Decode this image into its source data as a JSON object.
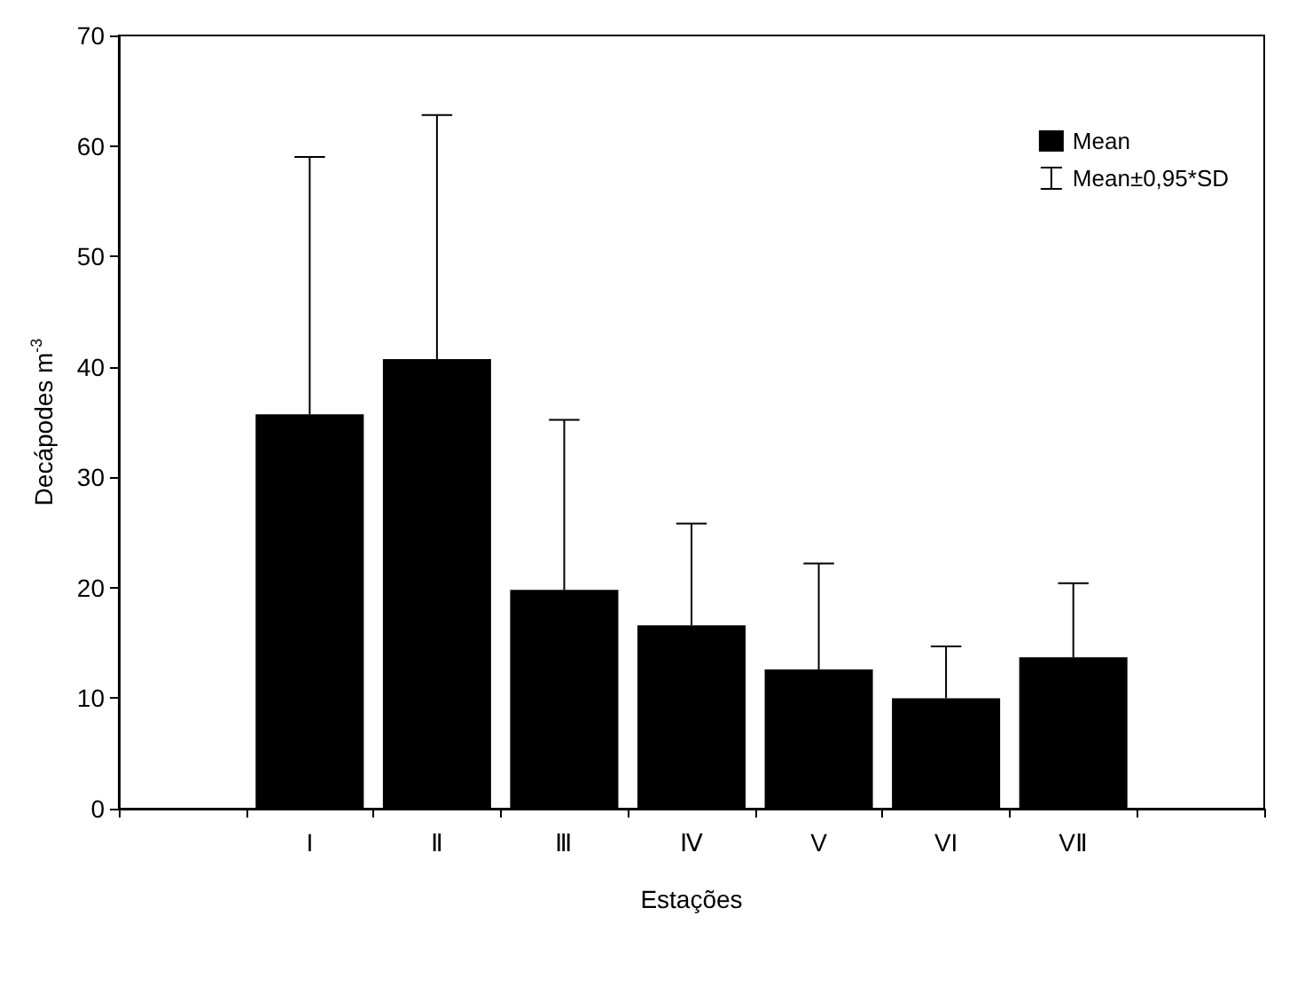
{
  "chart_data": {
    "type": "bar",
    "xlabel": "Estações",
    "ylabel": "Decápodes m$^{-3}$",
    "categories": [
      null,
      "I",
      "Ⅱ",
      "Ⅲ",
      "Ⅳ",
      "V",
      "VI",
      "VⅡ",
      null
    ],
    "series": [
      {
        "name": "Mean",
        "color": "#000000",
        "values": [
          null,
          35.7,
          40.7,
          19.8,
          16.6,
          12.6,
          10.0,
          13.7,
          null
        ],
        "errors": [
          null,
          23.3,
          22.1,
          15.4,
          9.2,
          9.6,
          4.7,
          6.7,
          null
        ]
      }
    ],
    "annotations": [
      "Mean±0,95*SD"
    ],
    "ylim": [
      0,
      70
    ],
    "yticks": [
      0,
      10,
      20,
      30,
      40,
      50,
      60,
      70
    ],
    "grid": false,
    "legend": "top right"
  }
}
